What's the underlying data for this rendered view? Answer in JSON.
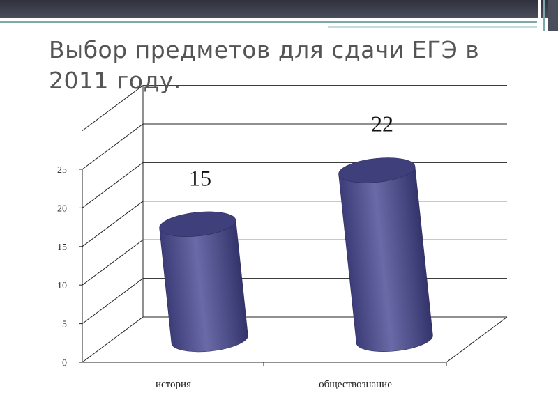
{
  "chart_data": {
    "type": "bar3d",
    "title": "Выбор предметов для сдачи ЕГЭ в 2011 году.",
    "categories": [
      "история",
      "обществознание"
    ],
    "values": [
      15,
      22
    ],
    "color": "#4b4b8c",
    "ylim": [
      0,
      25
    ],
    "yticks": [
      0,
      5,
      10,
      15,
      20,
      25
    ],
    "grid": true
  }
}
